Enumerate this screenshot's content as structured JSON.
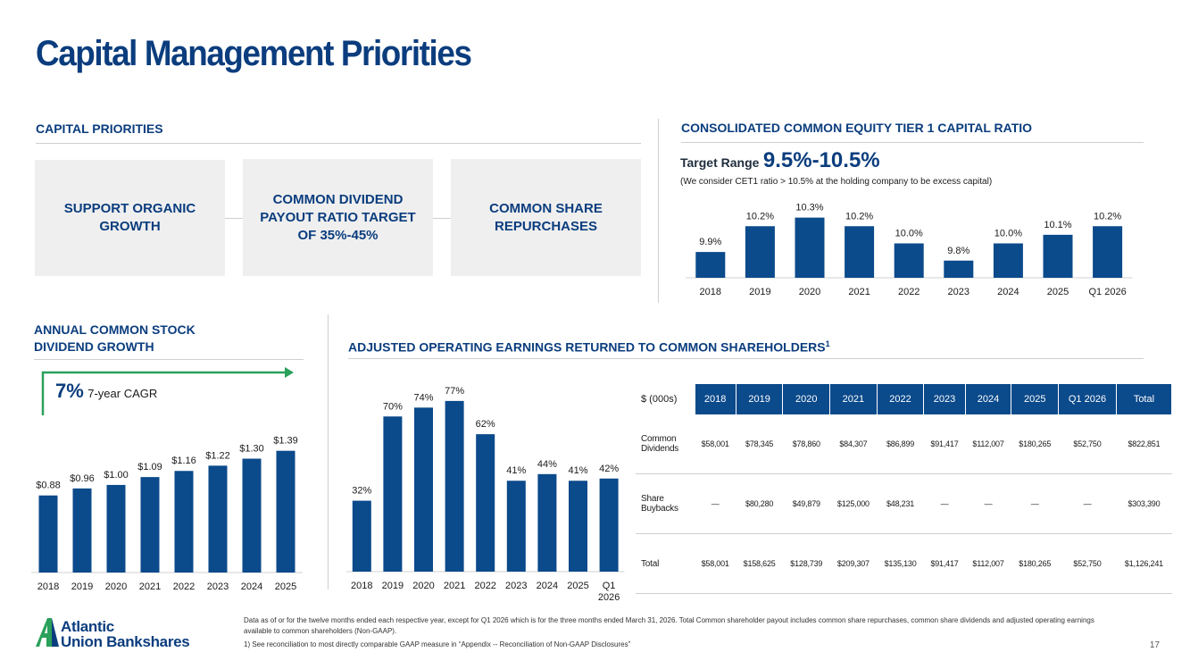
{
  "title": "Capital Management Priorities",
  "capital_priorities": {
    "heading": "CAPITAL PRIORITIES",
    "items": [
      "SUPPORT ORGANIC GROWTH",
      "COMMON DIVIDEND PAYOUT RATIO TARGET OF 35%-45%",
      "COMMON SHARE REPURCHASES"
    ]
  },
  "cet1": {
    "heading": "CONSOLIDATED COMMON EQUITY TIER 1 CAPITAL RATIO",
    "target_label": "Target Range",
    "target_value": "9.5%-10.5%",
    "note": "(We consider CET1 ratio > 10.5% at the holding company to be excess capital)"
  },
  "dividend": {
    "heading_line1": "ANNUAL COMMON STOCK",
    "heading_line2": "DIVIDEND GROWTH",
    "cagr_value": "7%",
    "cagr_label": "7-year CAGR"
  },
  "earnings": {
    "heading": "ADJUSTED OPERATING EARNINGS RETURNED TO COMMON SHAREHOLDERS",
    "heading_sup": "1"
  },
  "chart_data": [
    {
      "type": "bar",
      "name": "cet1-chart",
      "categories": [
        "2018",
        "2019",
        "2020",
        "2021",
        "2022",
        "2023",
        "2024",
        "2025",
        "Q1 2026"
      ],
      "values": [
        9.9,
        10.2,
        10.3,
        10.2,
        10.0,
        9.8,
        10.0,
        10.1,
        10.2
      ],
      "labels": [
        "9.9%",
        "10.2%",
        "10.3%",
        "10.2%",
        "10.0%",
        "9.8%",
        "10.0%",
        "10.1%",
        "10.2%"
      ],
      "ylim": [
        9.6,
        10.4
      ],
      "color": "#0b4a8b"
    },
    {
      "type": "bar",
      "name": "dividend-chart",
      "categories": [
        "2018",
        "2019",
        "2020",
        "2021",
        "2022",
        "2023",
        "2024",
        "2025"
      ],
      "values": [
        0.88,
        0.96,
        1.0,
        1.09,
        1.16,
        1.22,
        1.3,
        1.39
      ],
      "labels": [
        "$0.88",
        "$0.96",
        "$1.00",
        "$1.09",
        "$1.16",
        "$1.22",
        "$1.30",
        "$1.39"
      ],
      "ylim": [
        0,
        1.55
      ],
      "color": "#0b4a8b"
    },
    {
      "type": "bar",
      "name": "payout-chart",
      "categories": [
        "2018",
        "2019",
        "2020",
        "2021",
        "2022",
        "2023",
        "2024",
        "2025",
        "Q1 2026"
      ],
      "values": [
        32,
        70,
        74,
        77,
        62,
        41,
        44,
        41,
        42
      ],
      "labels": [
        "32%",
        "70%",
        "74%",
        "77%",
        "62%",
        "41%",
        "44%",
        "41%",
        "42%"
      ],
      "ylim": [
        0,
        83
      ],
      "color": "#0b4a8b"
    },
    {
      "type": "table",
      "name": "earnings-table",
      "columns": [
        "$ (000s)",
        "2018",
        "2019",
        "2020",
        "2021",
        "2022",
        "2023",
        "2024",
        "2025",
        "Q1 2026",
        "Total"
      ],
      "rows": [
        [
          "Common Dividends",
          "$58,001",
          "$78,345",
          "$78,860",
          "$84,307",
          "$86,899",
          "$91,417",
          "$112,007",
          "$180,265",
          "$52,750",
          "$822,851"
        ],
        [
          "Share Buybacks",
          "—",
          "$80,280",
          "$49,879",
          "$125,000",
          "$48,231",
          "—",
          "—",
          "—",
          "—",
          "$303,390"
        ],
        [
          "Total",
          "$58,001",
          "$158,625",
          "$128,739",
          "$209,307",
          "$135,130",
          "$91,417",
          "$112,007",
          "$180,265",
          "$52,750",
          "$1,126,241"
        ]
      ]
    }
  ],
  "footnote_line1": "Data as of or for the twelve months ended each respective year, except for Q1 2026 which is for the three months ended March 31, 2026.  Total Common shareholder payout includes common share repurchases, common share dividends and adjusted operating earnings available to common shareholders (Non-GAAP).",
  "footnote_line2": "1) See reconciliation to most directly comparable GAAP measure in “Appendix -- Reconciliation of Non-GAAP Disclosures”",
  "logo": {
    "line1": "Atlantic",
    "line2": "Union Bankshares"
  },
  "page_number": "17",
  "colors": {
    "brand": "#0b3d7e",
    "bar": "#0b4a8b",
    "accent": "#2aa05a"
  }
}
